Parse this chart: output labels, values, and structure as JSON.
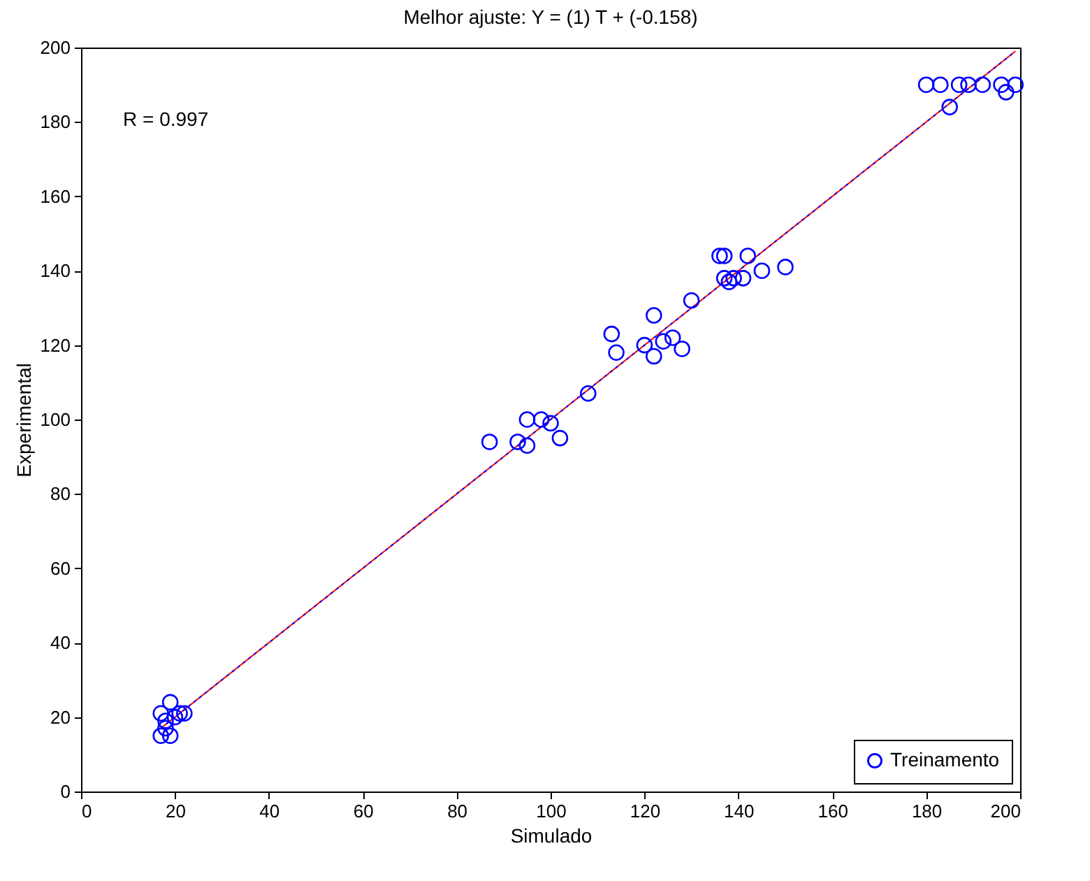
{
  "chart_data": {
    "type": "scatter",
    "title": "Melhor ajuste:  Y = (1) T + (-0.158)",
    "xlabel": "Simulado",
    "ylabel": "Experimental",
    "annotations": [
      "R = 0.997"
    ],
    "xlim": [
      0,
      200
    ],
    "ylim": [
      0,
      200
    ],
    "xticks": [
      0,
      20,
      40,
      60,
      80,
      100,
      120,
      140,
      160,
      180,
      200
    ],
    "yticks": [
      0,
      20,
      40,
      60,
      80,
      100,
      120,
      140,
      160,
      180,
      200
    ],
    "grid": false,
    "legend": "bottom right",
    "series": [
      {
        "type": "line",
        "color": "#ff0000",
        "line_style": "solid",
        "x": [
          17,
          199
        ],
        "values": [
          17,
          199
        ]
      },
      {
        "type": "line",
        "color": "#0000ff",
        "line_style": "dotted",
        "x": [
          17,
          199
        ],
        "values": [
          17,
          199
        ]
      },
      {
        "type": "scatter",
        "name": "Treinamento",
        "color": "#0000ff",
        "marker": "circle",
        "x": [
          17,
          18,
          19,
          20,
          22,
          17,
          19,
          18,
          21,
          87,
          93,
          95,
          95,
          98,
          100,
          102,
          108,
          113,
          114,
          120,
          122,
          122,
          124,
          126,
          128,
          130,
          136,
          137,
          137,
          138,
          139,
          141,
          142,
          145,
          150,
          180,
          183,
          185,
          187,
          189,
          192,
          196,
          197,
          199
        ],
        "values": [
          21,
          19,
          24,
          20,
          21,
          15,
          15,
          17,
          21,
          94,
          94,
          100,
          93,
          100,
          99,
          95,
          107,
          123,
          118,
          120,
          128,
          117,
          121,
          122,
          119,
          132,
          144,
          144,
          138,
          137,
          138,
          138,
          144,
          140,
          141,
          190,
          190,
          184,
          190,
          190,
          190,
          190,
          188,
          190
        ]
      }
    ]
  }
}
